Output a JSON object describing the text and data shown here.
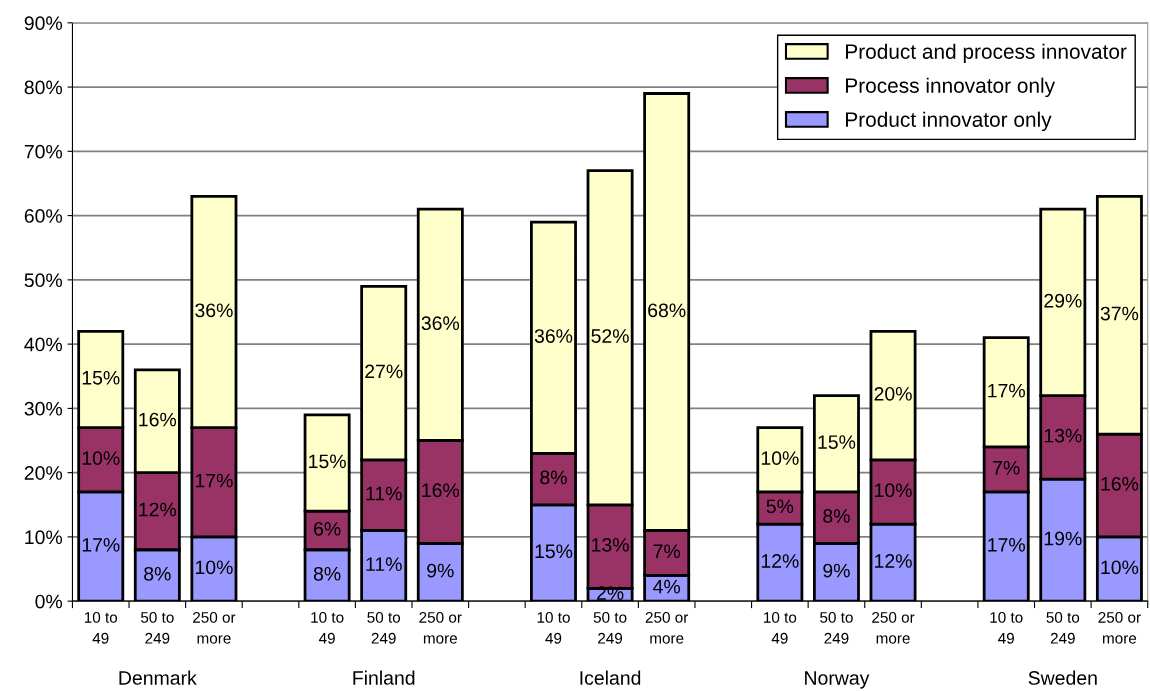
{
  "chart_data": {
    "type": "bar",
    "stacked": true,
    "categories": [
      "10 to\n49",
      "50 to\n249",
      "250 or\nmore",
      null,
      "10 to\n49",
      "50 to\n249",
      "250 or\nmore",
      null,
      "10 to\n49",
      "50 to\n249",
      "250 or\nmore",
      null,
      "10 to\n49",
      "50 to\n249",
      "250 or\nmore",
      null,
      "10 to\n49",
      "50 to\n249",
      "250 or\nmore"
    ],
    "series": [
      {
        "name": "Product innovator only",
        "color": "#9999ff",
        "values": [
          17,
          8,
          10,
          null,
          8,
          11,
          9,
          null,
          15,
          2,
          4,
          null,
          12,
          9,
          12,
          null,
          17,
          19,
          10
        ],
        "value_labels": [
          "17%",
          "8%",
          "10%",
          null,
          "8%",
          "11%",
          "9%",
          null,
          "15%",
          "2%",
          "4%",
          null,
          "12%",
          "9%",
          "12%",
          null,
          "17%",
          "19%",
          "10%"
        ]
      },
      {
        "name": "Process innovator only",
        "color": "#993366",
        "values": [
          10,
          12,
          17,
          null,
          6,
          11,
          16,
          null,
          8,
          13,
          7,
          null,
          5,
          8,
          10,
          null,
          7,
          13,
          16
        ],
        "value_labels": [
          "10%",
          "12%",
          "17%",
          null,
          "6%",
          "11%",
          "16%",
          null,
          "8%",
          "13%",
          "7%",
          null,
          "5%",
          "8%",
          "10%",
          null,
          "7%",
          "13%",
          "16%"
        ]
      },
      {
        "name": "Product and process innovator",
        "color": "#ffffcc",
        "values": [
          15,
          16,
          36,
          null,
          15,
          27,
          36,
          null,
          36,
          52,
          68,
          null,
          10,
          15,
          20,
          null,
          17,
          29,
          37
        ],
        "value_labels": [
          "15%",
          "16%",
          "36%",
          null,
          "15%",
          "27%",
          "36%",
          null,
          "36%",
          "52%",
          "68%",
          null,
          "10%",
          "15%",
          "20%",
          null,
          "17%",
          "29%",
          "37%"
        ]
      }
    ],
    "annotations": [
      "Denmark",
      "Finland",
      "Iceland",
      "Norway",
      "Sweden"
    ],
    "ylim": [
      0,
      90
    ],
    "yticks": [
      {
        "value": 0,
        "label": "0%"
      },
      {
        "value": 10,
        "label": "10%"
      },
      {
        "value": 20,
        "label": "20%"
      },
      {
        "value": 30,
        "label": "30%"
      },
      {
        "value": 40,
        "label": "40%"
      },
      {
        "value": 50,
        "label": "50%"
      },
      {
        "value": 60,
        "label": "60%"
      },
      {
        "value": 70,
        "label": "70%"
      },
      {
        "value": 80,
        "label": "80%"
      },
      {
        "value": 90,
        "label": "90%"
      }
    ],
    "grid": "y",
    "legend": "top right"
  }
}
